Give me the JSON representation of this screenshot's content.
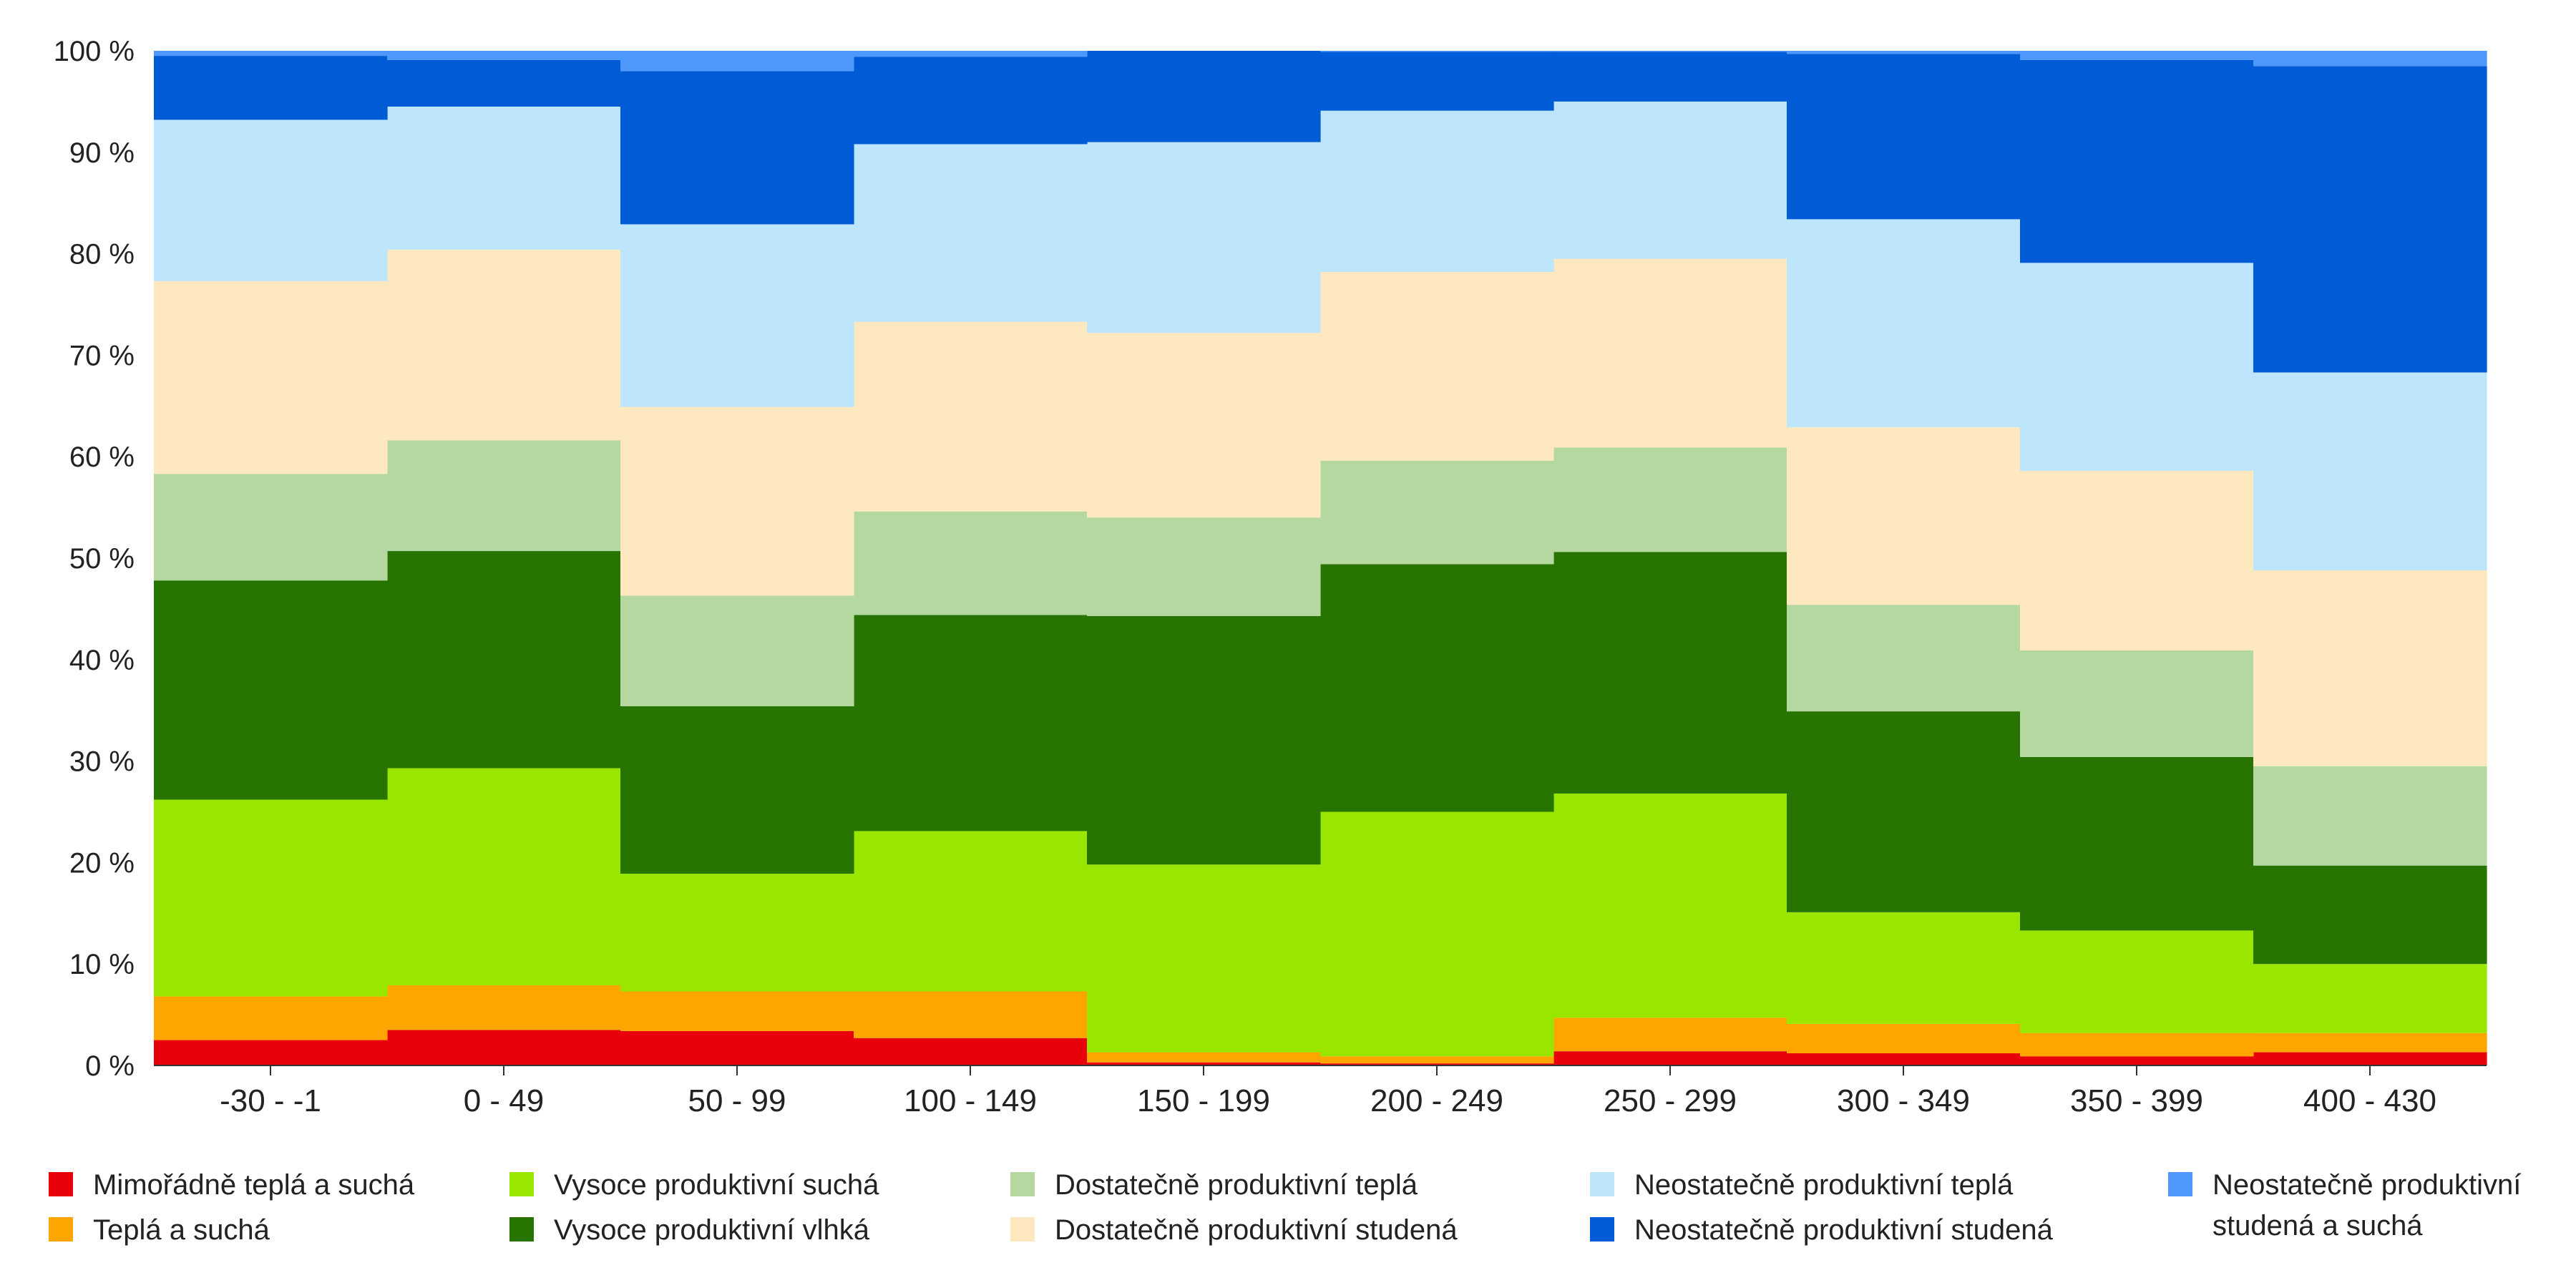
{
  "chart_data": {
    "type": "area",
    "stacked": true,
    "percent": true,
    "categories": [
      "-30 - -1",
      "0 - 49",
      "50 - 99",
      "100 - 149",
      "150 - 199",
      "200 - 249",
      "250 - 299",
      "300 - 349",
      "350 - 399",
      "400 - 430"
    ],
    "ylim": [
      0,
      100
    ],
    "yticks": [
      "0 %",
      "10 %",
      "20 %",
      "30 %",
      "40 %",
      "50 %",
      "60 %",
      "70 %",
      "80 %",
      "90 %",
      "100 %"
    ],
    "grid": false,
    "legend_position": "bottom",
    "series": [
      {
        "name": "Mimořádně teplá a suchá",
        "color": "#e8000b",
        "values": [
          2.5,
          3.5,
          3.4,
          2.7,
          0.3,
          0.2,
          1.4,
          1.2,
          0.9,
          1.3
        ]
      },
      {
        "name": "Teplá a suchá",
        "color": "#ffa500",
        "values": [
          4.3,
          4.4,
          3.9,
          4.6,
          1.0,
          0.7,
          3.3,
          2.9,
          2.3,
          1.9
        ]
      },
      {
        "name": "Vysoce produktivní suchá",
        "color": "#99e600",
        "values": [
          19.4,
          21.4,
          11.6,
          15.8,
          18.5,
          24.1,
          22.1,
          11.0,
          10.1,
          6.8
        ]
      },
      {
        "name": "Vysoce produktivní vlhká",
        "color": "#277400",
        "values": [
          21.6,
          21.4,
          16.5,
          21.3,
          24.5,
          24.4,
          23.8,
          19.8,
          17.1,
          9.7
        ]
      },
      {
        "name": "Dostatečně produktivní teplá",
        "color": "#b5d8a0",
        "values": [
          10.5,
          10.9,
          10.9,
          10.2,
          9.7,
          10.2,
          10.3,
          10.5,
          10.5,
          9.8
        ]
      },
      {
        "name": "Dostatečně produktivní studená",
        "color": "#fde8bf",
        "values": [
          19.0,
          18.8,
          18.6,
          18.7,
          18.2,
          18.6,
          18.6,
          17.5,
          17.7,
          19.3
        ]
      },
      {
        "name": "Neostatečně produktivní teplá",
        "color": "#bde5fc",
        "values": [
          15.9,
          14.1,
          18.0,
          17.5,
          18.8,
          15.9,
          15.5,
          20.5,
          20.5,
          19.5
        ]
      },
      {
        "name": "Neostatečně produktivní studená",
        "color": "#005cd6",
        "values": [
          6.3,
          4.6,
          15.1,
          8.6,
          9.0,
          5.8,
          4.9,
          16.3,
          20.0,
          30.2
        ]
      },
      {
        "name": "Neostatečně produktivní studená a suchá",
        "color": "#4d98fa",
        "values": [
          0.5,
          0.9,
          2.0,
          0.6,
          0.0,
          0.1,
          0.1,
          0.3,
          0.9,
          1.5
        ]
      }
    ],
    "legend_labels": [
      [
        "Mimořádně teplá a suchá"
      ],
      [
        "Teplá a suchá"
      ],
      [
        "Vysoce produktivní suchá"
      ],
      [
        "Vysoce produktivní vlhká"
      ],
      [
        "Dostatečně produktivní teplá"
      ],
      [
        "Dostatečně produktivní studená"
      ],
      [
        "Neostatečně produktivní teplá"
      ],
      [
        "Neostatečně produktivní studená"
      ],
      [
        "Neostatečně produktivní",
        "studená a suchá"
      ]
    ]
  }
}
